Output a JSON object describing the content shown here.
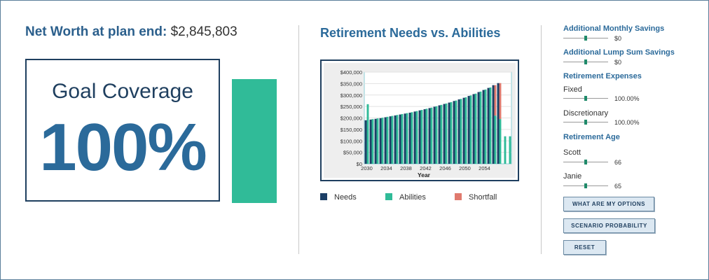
{
  "net_worth": {
    "label": "Net Worth at plan end:",
    "value": "$2,845,803"
  },
  "goal": {
    "label": "Goal Coverage",
    "value": "100%",
    "coverage_fraction": 1.0
  },
  "chart_title": "Retirement Needs vs. Abilities",
  "legend": [
    {
      "label": "Needs",
      "color": "#1c3f66"
    },
    {
      "label": "Abilities",
      "color": "#30bb98"
    },
    {
      "label": "Shortfall",
      "color": "#e07a6e"
    }
  ],
  "chart_data": {
    "type": "bar",
    "title": "",
    "xlabel": "Year",
    "ylabel": "",
    "ylim": [
      0,
      400000
    ],
    "y_tick_labels": [
      "$0",
      "$50,000",
      "$100,000",
      "$150,000",
      "$200,000",
      "$250,000",
      "$300,000",
      "$350,000",
      "$400,000"
    ],
    "y_tick_values": [
      0,
      50000,
      100000,
      150000,
      200000,
      250000,
      300000,
      350000,
      400000
    ],
    "x_tick_labels": [
      "2030",
      "2034",
      "2038",
      "2042",
      "2046",
      "2050",
      "2054"
    ],
    "x": [
      2030,
      2031,
      2032,
      2033,
      2034,
      2035,
      2036,
      2037,
      2038,
      2039,
      2040,
      2041,
      2042,
      2043,
      2044,
      2045,
      2046,
      2047,
      2048,
      2049,
      2050,
      2051,
      2052,
      2053,
      2054,
      2055,
      2056,
      2057,
      2058,
      2059
    ],
    "series": [
      {
        "name": "Needs",
        "color": "#1c3f66",
        "values": [
          190000,
          193000,
          196000,
          199000,
          203000,
          207000,
          211000,
          215000,
          219000,
          223000,
          228000,
          233000,
          238000,
          243000,
          249000,
          255000,
          261000,
          267000,
          274000,
          281000,
          288000,
          296000,
          304000,
          313000,
          322000,
          331000,
          343000,
          352000,
          0,
          0
        ]
      },
      {
        "name": "Abilities",
        "color": "#30bb98",
        "values": [
          260000,
          195000,
          198000,
          201000,
          205000,
          209000,
          213000,
          217000,
          221000,
          225000,
          230000,
          235000,
          240000,
          245000,
          251000,
          257000,
          263000,
          269000,
          276000,
          283000,
          290000,
          298000,
          306000,
          315000,
          324000,
          333000,
          210000,
          195000,
          120000,
          120000
        ]
      },
      {
        "name": "Shortfall",
        "color": "#e07a6e",
        "values": [
          0,
          0,
          0,
          0,
          0,
          0,
          0,
          0,
          0,
          0,
          0,
          0,
          0,
          0,
          0,
          0,
          0,
          0,
          0,
          0,
          0,
          0,
          0,
          0,
          0,
          0,
          133000,
          157000,
          0,
          0
        ]
      }
    ],
    "grid": true
  },
  "controls": {
    "additional_monthly_savings": {
      "label": "Additional Monthly Savings",
      "value": "$0",
      "position_fraction": 0.5
    },
    "additional_lump_sum_savings": {
      "label": "Additional Lump Sum Savings",
      "value": "$0",
      "position_fraction": 0.5
    },
    "retirement_expenses_heading": "Retirement Expenses",
    "fixed": {
      "label": "Fixed",
      "value": "100.00%",
      "position_fraction": 0.5
    },
    "discretionary": {
      "label": "Discretionary",
      "value": "100.00%",
      "position_fraction": 0.5
    },
    "retirement_age_heading": "Retirement Age",
    "scott": {
      "label": "Scott",
      "value": "66",
      "position_fraction": 0.5
    },
    "janie": {
      "label": "Janie",
      "value": "65",
      "position_fraction": 0.5
    }
  },
  "buttons": {
    "options": "WHAT ARE MY OPTIONS",
    "probability": "SCENARIO PROBABILITY",
    "reset": "RESET"
  }
}
